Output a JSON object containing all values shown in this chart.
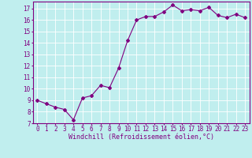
{
  "x": [
    0,
    1,
    2,
    3,
    4,
    5,
    6,
    7,
    8,
    9,
    10,
    11,
    12,
    13,
    14,
    15,
    16,
    17,
    18,
    19,
    20,
    21,
    22,
    23
  ],
  "y": [
    9.0,
    8.7,
    8.4,
    8.2,
    7.3,
    9.2,
    9.4,
    10.3,
    10.1,
    11.8,
    14.2,
    16.0,
    16.3,
    16.3,
    16.7,
    17.3,
    16.8,
    16.9,
    16.8,
    17.1,
    16.4,
    16.2,
    16.5,
    16.2
  ],
  "line_color": "#800080",
  "marker": "D",
  "marker_size": 2,
  "bg_color": "#c0eeee",
  "grid_color": "#ffffff",
  "xlabel": "Windchill (Refroidissement éolien,°C)",
  "ylim": [
    7,
    17.6
  ],
  "xlim": [
    -0.5,
    23.5
  ],
  "yticks": [
    7,
    8,
    9,
    10,
    11,
    12,
    13,
    14,
    15,
    16,
    17
  ],
  "xticks": [
    0,
    1,
    2,
    3,
    4,
    5,
    6,
    7,
    8,
    9,
    10,
    11,
    12,
    13,
    14,
    15,
    16,
    17,
    18,
    19,
    20,
    21,
    22,
    23
  ],
  "tick_fontsize": 5.5,
  "xlabel_fontsize": 6.0,
  "label_color": "#800080",
  "tick_color": "#800080",
  "spine_color": "#800080",
  "linewidth": 0.8
}
